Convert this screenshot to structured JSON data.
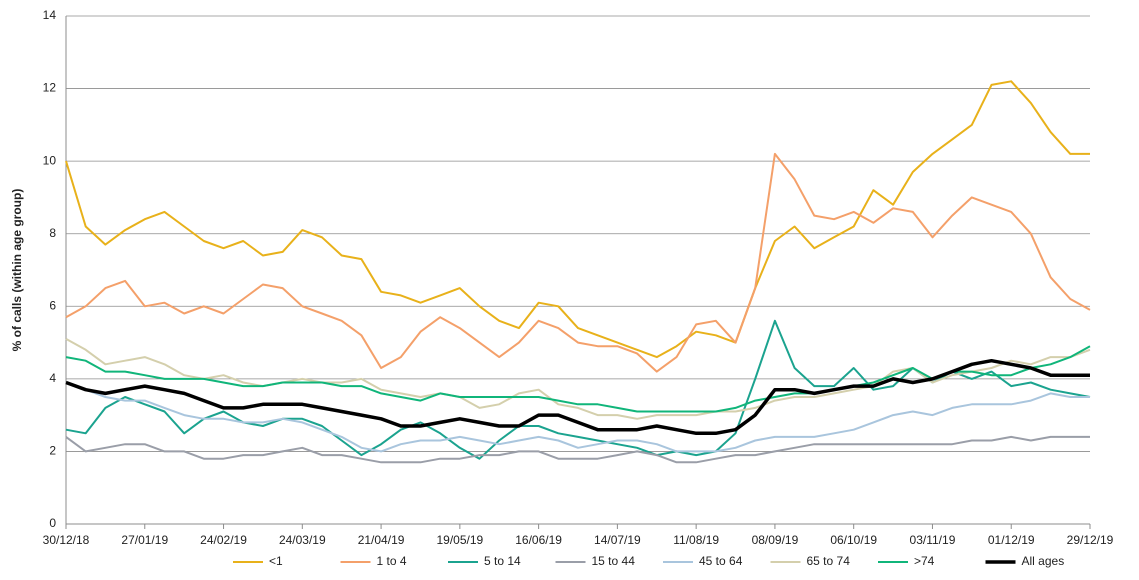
{
  "chart_data": {
    "type": "line",
    "ylabel": "% of calls (within age group)",
    "categories": [
      "30/12/18",
      null,
      null,
      null,
      "27/01/19",
      null,
      null,
      null,
      "24/02/19",
      null,
      null,
      null,
      "24/03/19",
      null,
      null,
      null,
      "21/04/19",
      null,
      null,
      null,
      "19/05/19",
      null,
      null,
      null,
      "16/06/19",
      null,
      null,
      null,
      "14/07/19",
      null,
      null,
      null,
      "11/08/19",
      null,
      null,
      null,
      "08/09/19",
      null,
      null,
      null,
      "06/10/19",
      null,
      null,
      null,
      "03/11/19",
      null,
      null,
      null,
      "01/12/19",
      null,
      null,
      null,
      "29/12/19"
    ],
    "series": [
      {
        "name": "<1",
        "color": "#e8b11a",
        "width": 2,
        "values": [
          10.0,
          8.2,
          7.7,
          8.1,
          8.4,
          8.6,
          8.2,
          7.8,
          7.6,
          7.8,
          7.4,
          7.5,
          8.1,
          7.9,
          7.4,
          7.3,
          6.4,
          6.3,
          6.1,
          6.3,
          6.5,
          6.0,
          5.6,
          5.4,
          6.1,
          6.0,
          5.4,
          5.2,
          5.0,
          4.8,
          4.6,
          4.9,
          5.3,
          5.2,
          5.0,
          6.5,
          7.8,
          8.2,
          7.6,
          7.9,
          8.2,
          9.2,
          8.8,
          9.7,
          10.2,
          10.6,
          11.0,
          12.1,
          12.2,
          11.6,
          10.8,
          10.2,
          10.2
        ]
      },
      {
        "name": "1 to 4",
        "color": "#f4a06a",
        "width": 2,
        "values": [
          5.7,
          6.0,
          6.5,
          6.7,
          6.0,
          6.1,
          5.8,
          6.0,
          5.8,
          6.2,
          6.6,
          6.5,
          6.0,
          5.8,
          5.6,
          5.2,
          4.3,
          4.6,
          5.3,
          5.7,
          5.4,
          5.0,
          4.6,
          5.0,
          5.6,
          5.4,
          5.0,
          4.9,
          4.9,
          4.7,
          4.2,
          4.6,
          5.5,
          5.6,
          5.0,
          6.5,
          10.2,
          9.5,
          8.5,
          8.4,
          8.6,
          8.3,
          8.7,
          8.6,
          7.9,
          8.5,
          9.0,
          8.8,
          8.6,
          8.0,
          6.8,
          6.2,
          5.9
        ]
      },
      {
        "name": "5 to 14",
        "color": "#1ba38f",
        "width": 2,
        "values": [
          2.6,
          2.5,
          3.2,
          3.5,
          3.3,
          3.1,
          2.5,
          2.9,
          3.1,
          2.8,
          2.7,
          2.9,
          2.9,
          2.7,
          2.3,
          1.9,
          2.2,
          2.6,
          2.8,
          2.5,
          2.1,
          1.8,
          2.3,
          2.7,
          2.7,
          2.5,
          2.4,
          2.3,
          2.2,
          2.1,
          1.9,
          2.0,
          1.9,
          2.0,
          2.5,
          4.0,
          5.6,
          4.3,
          3.8,
          3.8,
          4.3,
          3.7,
          3.8,
          4.3,
          3.9,
          4.2,
          4.0,
          4.2,
          3.8,
          3.9,
          3.7,
          3.6,
          3.5
        ]
      },
      {
        "name": "15 to 44",
        "color": "#9a9ea8",
        "width": 2,
        "values": [
          2.4,
          2.0,
          2.1,
          2.2,
          2.2,
          2.0,
          2.0,
          1.8,
          1.8,
          1.9,
          1.9,
          2.0,
          2.1,
          1.9,
          1.9,
          1.8,
          1.7,
          1.7,
          1.7,
          1.8,
          1.8,
          1.9,
          1.9,
          2.0,
          2.0,
          1.8,
          1.8,
          1.8,
          1.9,
          2.0,
          1.9,
          1.7,
          1.7,
          1.8,
          1.9,
          1.9,
          2.0,
          2.1,
          2.2,
          2.2,
          2.2,
          2.2,
          2.2,
          2.2,
          2.2,
          2.2,
          2.3,
          2.3,
          2.4,
          2.3,
          2.4,
          2.4,
          2.4
        ]
      },
      {
        "name": "45 to 64",
        "color": "#a9c5dd",
        "width": 2,
        "values": [
          3.9,
          3.7,
          3.5,
          3.4,
          3.4,
          3.2,
          3.0,
          2.9,
          2.9,
          2.8,
          2.8,
          2.9,
          2.8,
          2.6,
          2.4,
          2.1,
          2.0,
          2.2,
          2.3,
          2.3,
          2.4,
          2.3,
          2.2,
          2.3,
          2.4,
          2.3,
          2.1,
          2.2,
          2.3,
          2.3,
          2.2,
          2.0,
          2.0,
          2.0,
          2.1,
          2.3,
          2.4,
          2.4,
          2.4,
          2.5,
          2.6,
          2.8,
          3.0,
          3.1,
          3.0,
          3.2,
          3.3,
          3.3,
          3.3,
          3.4,
          3.6,
          3.5,
          3.5
        ]
      },
      {
        "name": "65 to 74",
        "color": "#d4cfac",
        "width": 2,
        "values": [
          5.1,
          4.8,
          4.4,
          4.5,
          4.6,
          4.4,
          4.1,
          4.0,
          4.1,
          3.9,
          3.8,
          3.9,
          4.0,
          3.9,
          3.9,
          4.0,
          3.7,
          3.6,
          3.5,
          3.6,
          3.5,
          3.2,
          3.3,
          3.6,
          3.7,
          3.3,
          3.2,
          3.0,
          3.0,
          2.9,
          3.0,
          3.0,
          3.0,
          3.1,
          3.1,
          3.2,
          3.4,
          3.5,
          3.5,
          3.6,
          3.7,
          3.8,
          4.2,
          4.3,
          3.9,
          4.1,
          4.2,
          4.3,
          4.5,
          4.4,
          4.6,
          4.6,
          4.8
        ]
      },
      {
        "name": ">74",
        "color": "#10b57a",
        "width": 2,
        "values": [
          4.6,
          4.5,
          4.2,
          4.2,
          4.1,
          4.0,
          4.0,
          4.0,
          3.9,
          3.8,
          3.8,
          3.9,
          3.9,
          3.9,
          3.8,
          3.8,
          3.6,
          3.5,
          3.4,
          3.6,
          3.5,
          3.5,
          3.5,
          3.5,
          3.5,
          3.4,
          3.3,
          3.3,
          3.2,
          3.1,
          3.1,
          3.1,
          3.1,
          3.1,
          3.2,
          3.4,
          3.5,
          3.6,
          3.6,
          3.7,
          3.8,
          3.9,
          4.1,
          4.3,
          4.0,
          4.2,
          4.2,
          4.1,
          4.1,
          4.3,
          4.4,
          4.6,
          4.9
        ]
      },
      {
        "name": "All ages",
        "color": "#000000",
        "width": 3.5,
        "values": [
          3.9,
          3.7,
          3.6,
          3.7,
          3.8,
          3.7,
          3.6,
          3.4,
          3.2,
          3.2,
          3.3,
          3.3,
          3.3,
          3.2,
          3.1,
          3.0,
          2.9,
          2.7,
          2.7,
          2.8,
          2.9,
          2.8,
          2.7,
          2.7,
          3.0,
          3.0,
          2.8,
          2.6,
          2.6,
          2.6,
          2.7,
          2.6,
          2.5,
          2.5,
          2.6,
          3.0,
          3.7,
          3.7,
          3.6,
          3.7,
          3.8,
          3.8,
          4.0,
          3.9,
          4.0,
          4.2,
          4.4,
          4.5,
          4.4,
          4.3,
          4.1,
          4.1,
          4.1
        ]
      }
    ],
    "ylim": [
      0,
      14
    ],
    "yticks": [
      0,
      2,
      4,
      6,
      8,
      10,
      12,
      14
    ],
    "grid": true,
    "legend": "bottom"
  }
}
